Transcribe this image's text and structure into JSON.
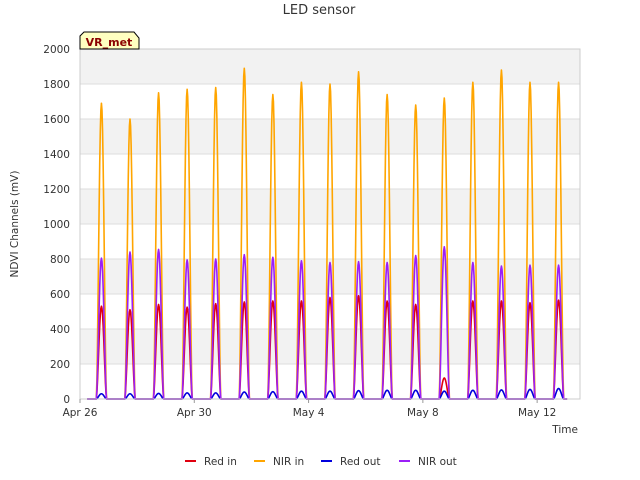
{
  "chart_data": {
    "type": "line",
    "title": "LED sensor",
    "xlabel": "Time",
    "ylabel": "NDVI Channels (mV)",
    "badge": "VR_met",
    "ylim": [
      0,
      2000
    ],
    "yticks": [
      0,
      200,
      400,
      600,
      800,
      1000,
      1200,
      1400,
      1600,
      1800,
      2000
    ],
    "xlim": [
      0,
      17.5
    ],
    "xticks": [
      {
        "day": 0,
        "label": "Apr 26"
      },
      {
        "day": 4,
        "label": "Apr 30"
      },
      {
        "day": 8,
        "label": "May 4"
      },
      {
        "day": 12,
        "label": "May 8"
      },
      {
        "day": 16,
        "label": "May 12"
      }
    ],
    "grid": "horizontal",
    "legend_position": "bottom",
    "colors": {
      "band": "#f2f2f2",
      "grid": "#dddddd",
      "Red in": "#e0000f",
      "NIR in": "#ffa500",
      "Red out": "#0000dd",
      "NIR out": "#9b1ff7"
    },
    "peak_hours": [
      0.75,
      1.75,
      2.75,
      3.75,
      4.75,
      5.75,
      6.75,
      7.75,
      8.75,
      9.75,
      10.75,
      11.75,
      12.75,
      13.75,
      14.75,
      15.75,
      16.75
    ],
    "series": [
      {
        "name": "Red in",
        "peaks": [
          530,
          510,
          540,
          525,
          545,
          555,
          560,
          560,
          580,
          590,
          560,
          540,
          120,
          560,
          560,
          550,
          565
        ]
      },
      {
        "name": "NIR in",
        "peaks": [
          1690,
          1600,
          1750,
          1770,
          1780,
          1890,
          1740,
          1810,
          1800,
          1870,
          1740,
          1680,
          1720,
          1810,
          1880,
          1810,
          1810
        ]
      },
      {
        "name": "Red out",
        "peaks": [
          30,
          30,
          32,
          35,
          35,
          40,
          42,
          45,
          45,
          48,
          50,
          50,
          45,
          50,
          52,
          55,
          60
        ]
      },
      {
        "name": "NIR out",
        "peaks": [
          805,
          840,
          855,
          795,
          800,
          825,
          810,
          790,
          780,
          785,
          780,
          820,
          870,
          780,
          760,
          765,
          765
        ]
      }
    ]
  }
}
